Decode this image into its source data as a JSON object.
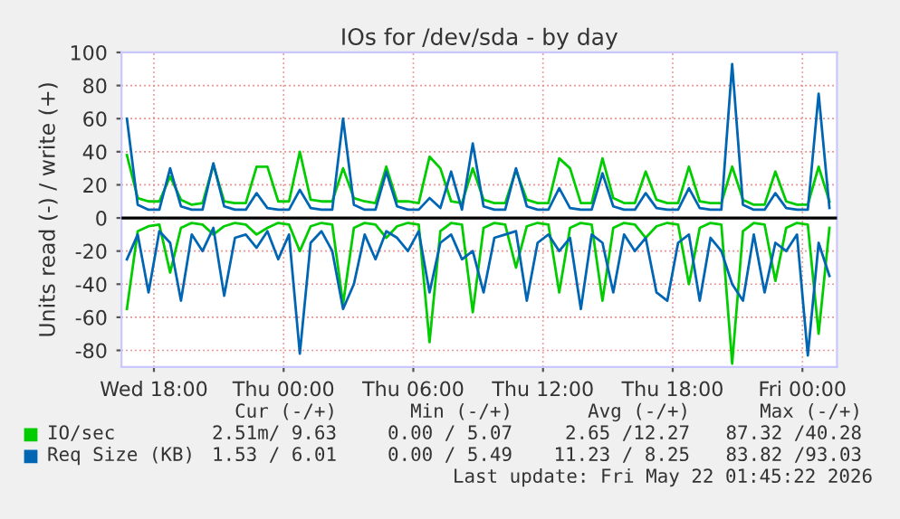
{
  "chart_data": {
    "type": "line",
    "title": "IOs for /dev/sda - by day",
    "ylabel": "Units read (-) / write (+)",
    "x": [
      "2026-05-20T16:45",
      "2026-05-20T17:15",
      "2026-05-20T17:45",
      "2026-05-20T18:15",
      "2026-05-20T18:45",
      "2026-05-20T19:15",
      "2026-05-20T19:45",
      "2026-05-20T20:15",
      "2026-05-20T20:45",
      "2026-05-20T21:15",
      "2026-05-20T21:45",
      "2026-05-20T22:15",
      "2026-05-20T22:45",
      "2026-05-20T23:15",
      "2026-05-20T23:45",
      "2026-05-21T00:15",
      "2026-05-21T00:45",
      "2026-05-21T01:15",
      "2026-05-21T01:45",
      "2026-05-21T02:15",
      "2026-05-21T02:45",
      "2026-05-21T03:15",
      "2026-05-21T03:45",
      "2026-05-21T04:15",
      "2026-05-21T04:45",
      "2026-05-21T05:15",
      "2026-05-21T05:45",
      "2026-05-21T06:15",
      "2026-05-21T06:45",
      "2026-05-21T07:15",
      "2026-05-21T07:45",
      "2026-05-21T08:15",
      "2026-05-21T08:45",
      "2026-05-21T09:15",
      "2026-05-21T09:45",
      "2026-05-21T10:15",
      "2026-05-21T10:45",
      "2026-05-21T11:15",
      "2026-05-21T11:45",
      "2026-05-21T12:15",
      "2026-05-21T12:45",
      "2026-05-21T13:15",
      "2026-05-21T13:45",
      "2026-05-21T14:15",
      "2026-05-21T14:45",
      "2026-05-21T15:15",
      "2026-05-21T15:45",
      "2026-05-21T16:15",
      "2026-05-21T16:45",
      "2026-05-21T17:15",
      "2026-05-21T17:45",
      "2026-05-21T18:15",
      "2026-05-21T18:45",
      "2026-05-21T19:15",
      "2026-05-21T19:45",
      "2026-05-21T20:15",
      "2026-05-21T20:45",
      "2026-05-21T21:15",
      "2026-05-21T21:45",
      "2026-05-21T22:15",
      "2026-05-21T22:45",
      "2026-05-21T23:15",
      "2026-05-21T23:45",
      "2026-05-22T00:15",
      "2026-05-22T00:45",
      "2026-05-22T01:15"
    ],
    "series": [
      {
        "name": "IO/sec",
        "color": "#00cc00",
        "values": [
          38,
          12,
          10,
          10,
          25,
          11,
          8,
          9,
          32,
          10,
          9,
          9,
          31,
          31,
          10,
          10,
          40,
          11,
          10,
          10,
          30,
          12,
          10,
          9,
          31,
          10,
          10,
          9,
          37,
          30,
          10,
          9,
          30,
          11,
          9,
          9,
          29,
          11,
          9,
          9,
          36,
          30,
          9,
          9,
          36,
          12,
          9,
          9,
          28,
          11,
          9,
          9,
          31,
          10,
          9,
          9,
          31,
          11,
          8,
          8,
          28,
          10,
          8,
          8,
          31,
          10
        ]
      },
      {
        "color": "#00cc00",
        "values": [
          -55,
          -8,
          -5,
          -4,
          -33,
          -6,
          -3,
          -4,
          -10,
          -5,
          -3,
          -4,
          -10,
          -6,
          -3,
          -4,
          -20,
          -5,
          -3,
          -4,
          -52,
          -6,
          -3,
          -4,
          -12,
          -5,
          -3,
          -4,
          -75,
          -8,
          -3,
          -4,
          -57,
          -6,
          -3,
          -4,
          -30,
          -5,
          -3,
          -4,
          -45,
          -6,
          -3,
          -4,
          -50,
          -6,
          -3,
          -4,
          -12,
          -5,
          -3,
          -4,
          -40,
          -6,
          -3,
          -4,
          -88,
          -8,
          -3,
          -4,
          -38,
          -6,
          -3,
          -4,
          -70,
          -6
        ]
      },
      {
        "name": "Req Size (KB)",
        "color": "#0066b3",
        "values": [
          60,
          8,
          5,
          5,
          30,
          7,
          5,
          5,
          33,
          7,
          5,
          5,
          15,
          6,
          5,
          5,
          17,
          6,
          5,
          5,
          60,
          8,
          5,
          5,
          28,
          7,
          5,
          5,
          12,
          6,
          28,
          5,
          45,
          7,
          5,
          5,
          30,
          7,
          5,
          5,
          18,
          6,
          5,
          5,
          27,
          7,
          5,
          5,
          15,
          6,
          5,
          5,
          18,
          6,
          5,
          5,
          93,
          8,
          5,
          5,
          15,
          6,
          5,
          5,
          75,
          6
        ]
      },
      {
        "color": "#0066b3",
        "values": [
          -25,
          -10,
          -45,
          -8,
          -15,
          -50,
          -10,
          -20,
          -6,
          -47,
          -12,
          -10,
          -18,
          -8,
          -25,
          -10,
          -82,
          -15,
          -8,
          -20,
          -55,
          -40,
          -10,
          -25,
          -8,
          -12,
          -20,
          -8,
          -45,
          -15,
          -10,
          -25,
          -20,
          -45,
          -12,
          -10,
          -8,
          -50,
          -15,
          -10,
          -20,
          -12,
          -55,
          -10,
          -15,
          -45,
          -10,
          -20,
          -12,
          -45,
          -50,
          -15,
          -10,
          -50,
          -12,
          -20,
          -40,
          -50,
          -10,
          -45,
          -15,
          -20,
          -10,
          -83,
          -15,
          -35
        ]
      }
    ],
    "xlim": [
      "2026-05-20T16:30",
      "2026-05-22T01:36"
    ],
    "ylim": [
      -90,
      100
    ],
    "xticks": [
      {
        "value": "2026-05-20T18:00",
        "label": "Wed 18:00"
      },
      {
        "value": "2026-05-21T00:00",
        "label": "Thu 00:00"
      },
      {
        "value": "2026-05-21T06:00",
        "label": "Thu 06:00"
      },
      {
        "value": "2026-05-21T12:00",
        "label": "Thu 12:00"
      },
      {
        "value": "2026-05-21T18:00",
        "label": "Thu 18:00"
      },
      {
        "value": "2026-05-22T00:00",
        "label": "Fri 00:00"
      }
    ],
    "yticks": [
      -80,
      -60,
      -40,
      -20,
      0,
      20,
      40,
      60,
      80,
      100
    ],
    "ref_lines": [
      {
        "axis": "y",
        "value": 0,
        "color": "#000000"
      }
    ],
    "grid": true,
    "legend": "bottom",
    "annotations": [
      "Cur (-/+)",
      "Min (-/+)",
      "Avg (-/+)",
      "Max (-/+)",
      "2.51m/ 9.63",
      "0.00 / 5.07",
      "2.65 /12.27",
      "87.32 /40.28",
      "1.53 / 6.01",
      "0.00 / 5.49",
      "11.23 / 8.25",
      "83.82 /93.03",
      "Last update: Fri May 22 01:45:22 2026"
    ]
  }
}
